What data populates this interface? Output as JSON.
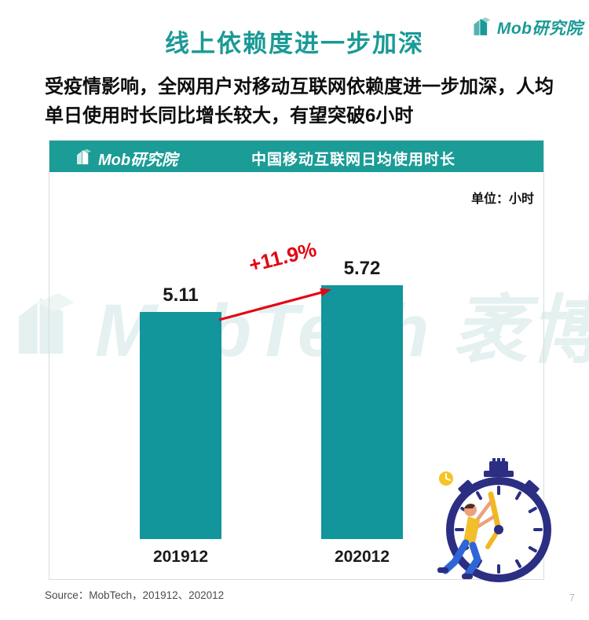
{
  "page": {
    "top_logo_text": "Mob研究院",
    "title": "线上依赖度进一步加深",
    "intro": "受疫情影响，全网用户对移动互联网依赖度进一步加深，人均单日使用时长同比增长较大，有望突破6小时",
    "watermark": "MobTech 袤博",
    "source": "Source：MobTech，201912、202012",
    "page_number": "7"
  },
  "card": {
    "logo_text": "Mob研究院",
    "title": "中国移动互联网日均使用时长",
    "unit_label": "单位：小时"
  },
  "chart_data": {
    "type": "bar",
    "title": "中国移动互联网日均使用时长",
    "unit": "小时",
    "categories": [
      "201912",
      "202012"
    ],
    "values": [
      5.11,
      5.72
    ],
    "growth_label": "+11.9%",
    "bar_color": "#12959b",
    "ylim": [
      0,
      6
    ],
    "grid": false,
    "legend": "none"
  },
  "colors": {
    "teal": "#1a9a96",
    "header_teal": "#1b9c96",
    "bar_teal": "#12959b",
    "red": "#e30613",
    "navy": "#2b2e83",
    "yellow": "#f5c425"
  }
}
